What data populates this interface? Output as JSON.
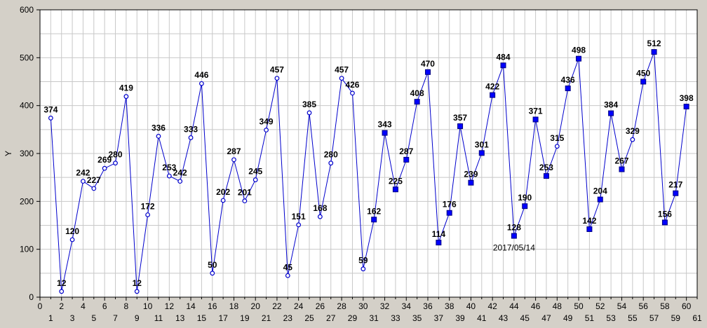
{
  "colors": {
    "background": "#d4d0c8",
    "plot": "#ffffff",
    "grid": "#c8c8c8",
    "series": "#0000cc",
    "open_marker_fill": "#ffffff",
    "filled_marker_fill": "#0000ff"
  },
  "chart_data": {
    "type": "line",
    "title": "",
    "xlabel": "",
    "ylabel": "Y",
    "xlim": [
      0,
      61
    ],
    "ylim": [
      0,
      600
    ],
    "x_ticks_major": [
      0,
      2,
      4,
      6,
      8,
      10,
      12,
      14,
      16,
      18,
      20,
      22,
      24,
      26,
      28,
      30,
      32,
      34,
      36,
      38,
      40,
      42,
      44,
      46,
      48,
      50,
      52,
      54,
      56,
      58,
      60
    ],
    "x_ticks_minor": [
      1,
      3,
      5,
      7,
      9,
      11,
      13,
      15,
      17,
      19,
      21,
      23,
      25,
      27,
      29,
      31,
      33,
      35,
      37,
      39,
      41,
      43,
      45,
      47,
      49,
      51,
      53,
      55,
      57,
      59,
      61
    ],
    "y_ticks": [
      0,
      100,
      200,
      300,
      400,
      500,
      600
    ],
    "grid": true,
    "series": [
      {
        "x": [
          1,
          2,
          3,
          4,
          5,
          6,
          7,
          8,
          9,
          10,
          11,
          12,
          13,
          14,
          15,
          16,
          17,
          18,
          19,
          20,
          21,
          22,
          23,
          24,
          25,
          26,
          27,
          28,
          29,
          30,
          31,
          32,
          33,
          34,
          35,
          36,
          37,
          38,
          39,
          40,
          41,
          42,
          43,
          44,
          45,
          46,
          47,
          48,
          49,
          50,
          51,
          52,
          53,
          54,
          55,
          56,
          57,
          58,
          59,
          60
        ],
        "values": [
          374,
          12,
          120,
          242,
          227,
          269,
          280,
          419,
          12,
          172,
          336,
          253,
          242,
          333,
          446,
          50,
          202,
          287,
          201,
          245,
          349,
          457,
          45,
          151,
          385,
          168,
          280,
          457,
          426,
          59,
          162,
          343,
          225,
          287,
          408,
          470,
          114,
          176,
          357,
          239,
          301,
          422,
          484,
          128,
          190,
          371,
          253,
          315,
          436,
          498,
          142,
          204,
          384,
          267,
          329,
          450,
          512,
          156,
          217,
          398
        ],
        "marker_style": [
          "open",
          "open",
          "open",
          "open",
          "open",
          "open",
          "open",
          "open",
          "open",
          "open",
          "open",
          "open",
          "open",
          "open",
          "open",
          "open",
          "open",
          "open",
          "open",
          "open",
          "open",
          "open",
          "open",
          "open",
          "open",
          "open",
          "open",
          "open",
          "open",
          "open",
          "filled",
          "filled",
          "filled",
          "filled",
          "filled",
          "filled",
          "filled",
          "filled",
          "filled",
          "filled",
          "filled",
          "filled",
          "filled",
          "filled",
          "filled",
          "filled",
          "filled",
          "open",
          "filled",
          "filled",
          "filled",
          "filled",
          "filled",
          "filled",
          "open",
          "filled",
          "filled",
          "filled",
          "filled",
          "filled"
        ]
      }
    ],
    "annotations": [
      {
        "x": 44,
        "y": 128,
        "text": "2017/05/14"
      }
    ]
  }
}
